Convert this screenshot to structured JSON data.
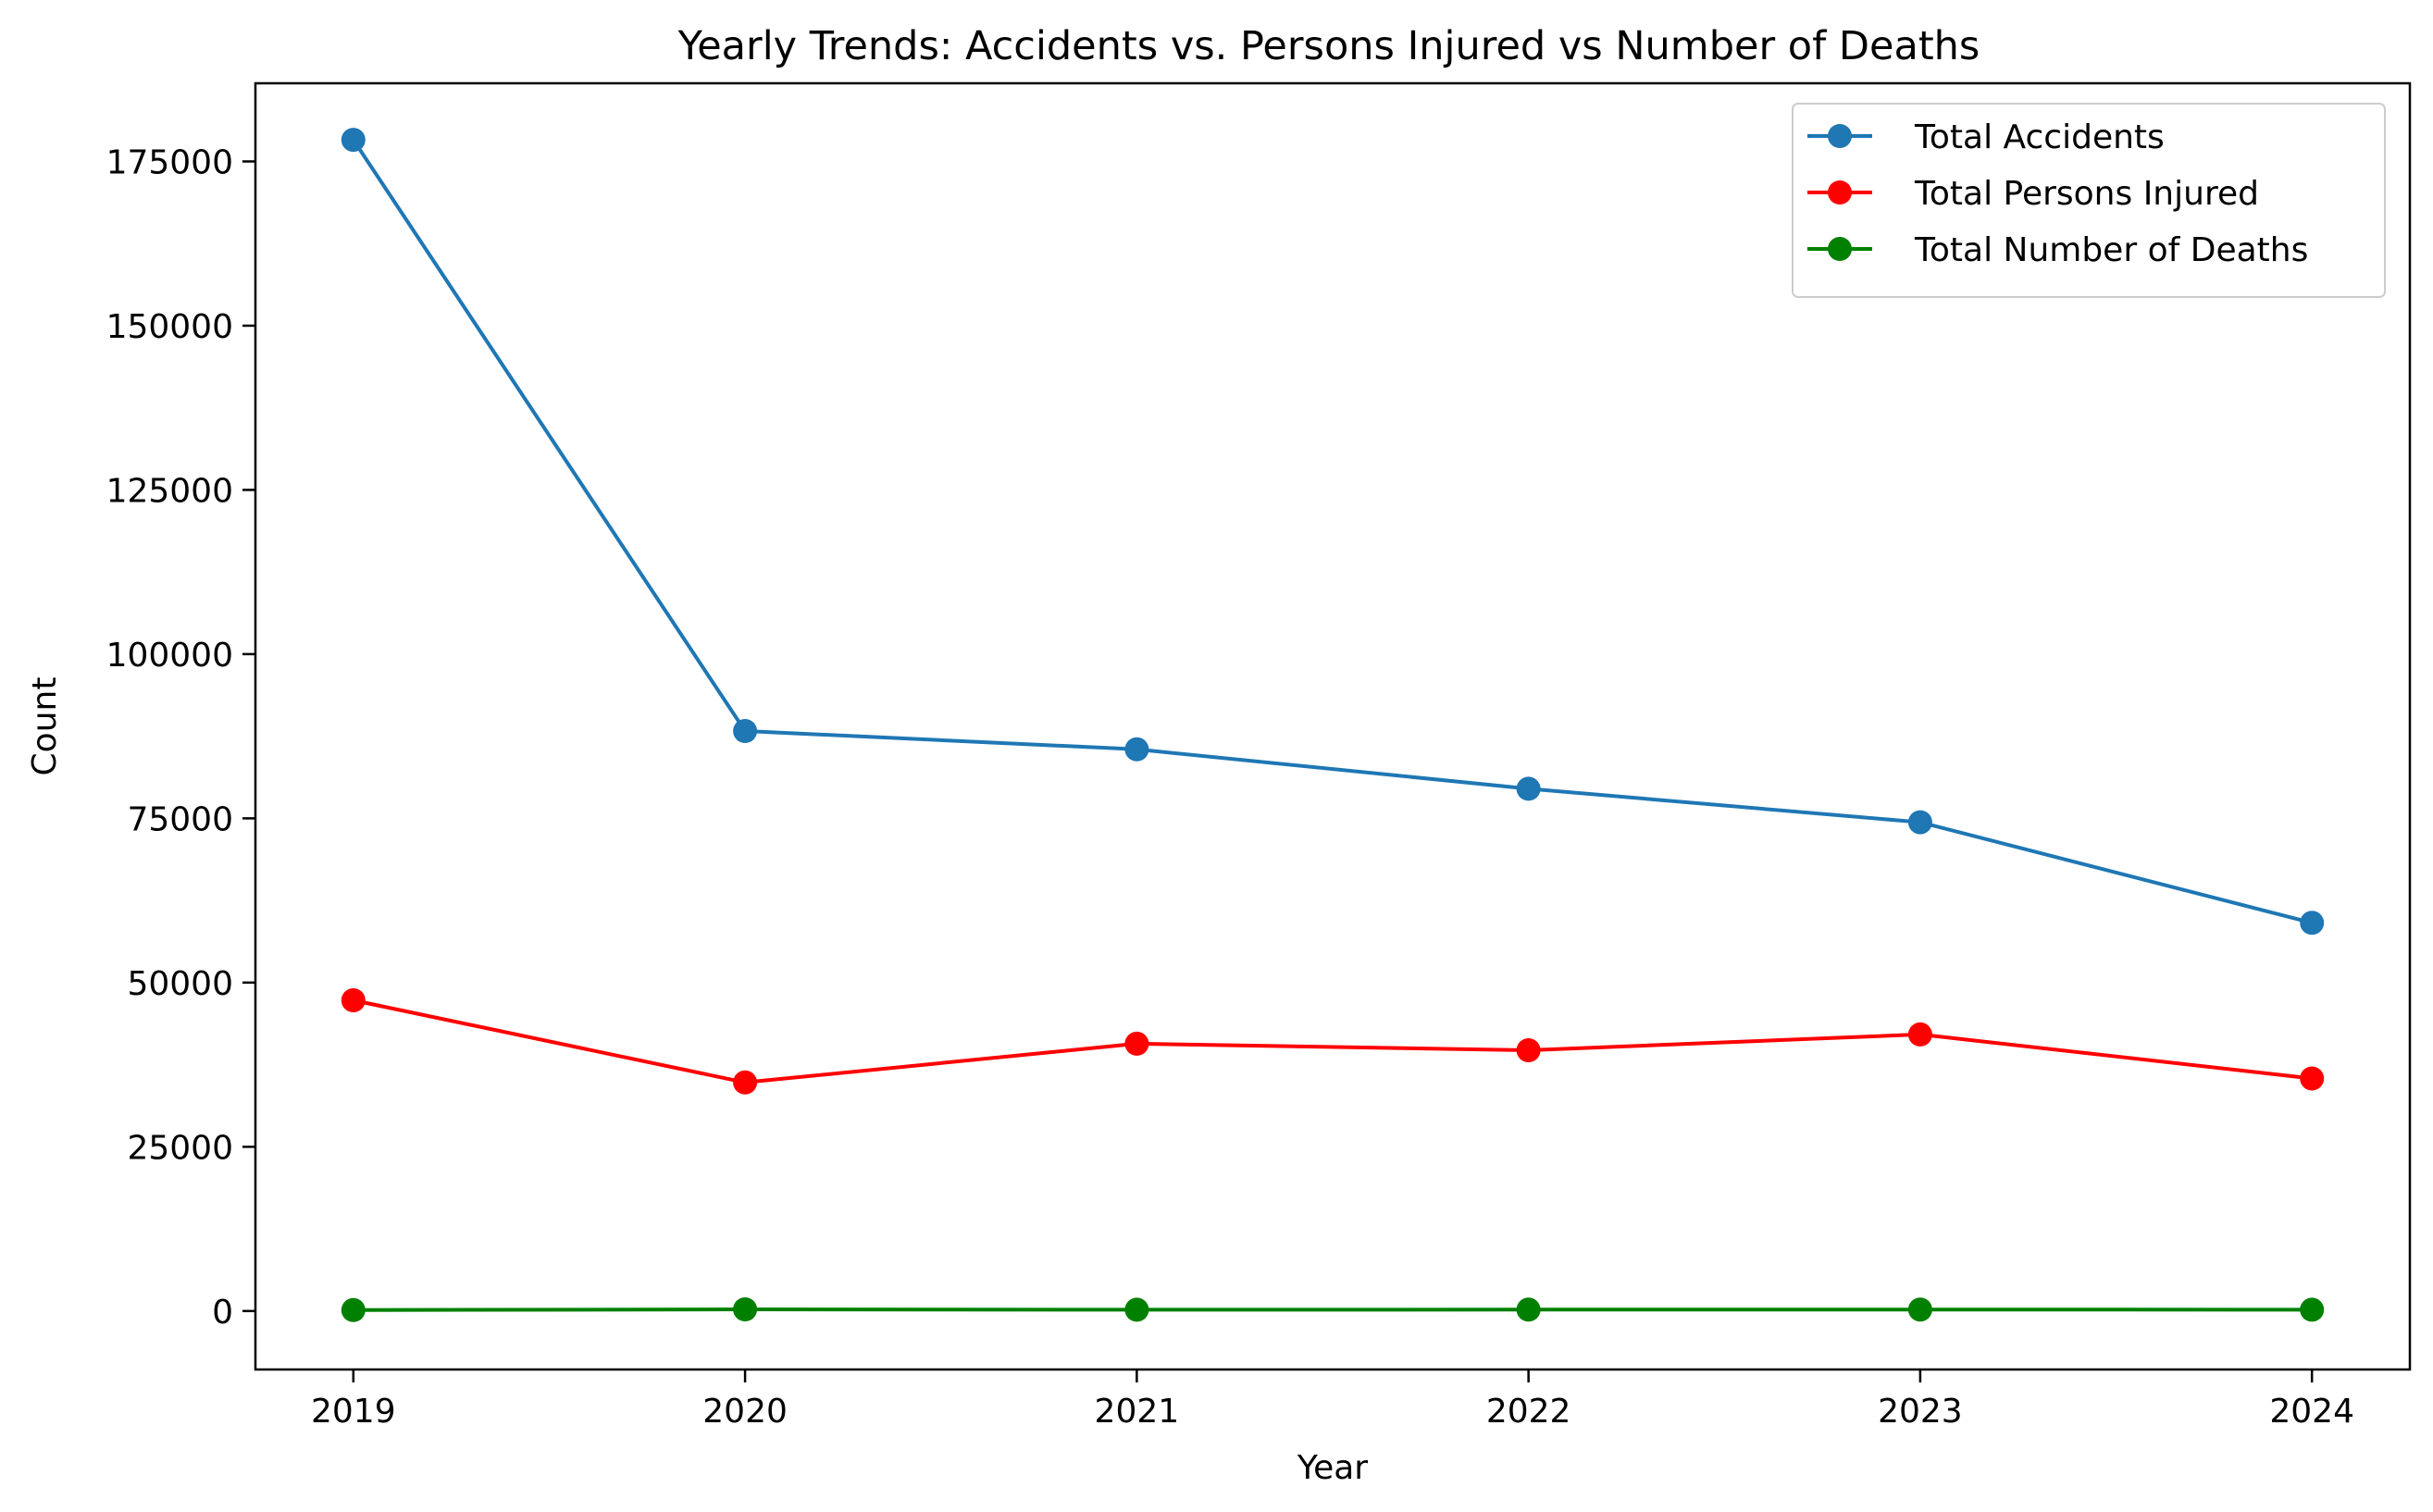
{
  "chart_data": {
    "type": "line",
    "title": "Yearly Trends: Accidents vs. Persons Injured vs Number of Deaths",
    "xlabel": "Year",
    "ylabel": "Count",
    "categories": [
      "2019",
      "2020",
      "2021",
      "2022",
      "2023",
      "2024"
    ],
    "x": [
      2019,
      2020,
      2021,
      2022,
      2023,
      2024
    ],
    "xlim": [
      2018.75,
      2024.25
    ],
    "ylim": [
      -8900,
      186900
    ],
    "yticks": [
      0,
      25000,
      50000,
      75000,
      100000,
      125000,
      150000,
      175000
    ],
    "ytick_labels": [
      "0",
      "25000",
      "50000",
      "75000",
      "100000",
      "125000",
      "150000",
      "175000"
    ],
    "grid": false,
    "legend": "top-right",
    "series": [
      {
        "name": "Total Accidents",
        "color": "#1f77b4",
        "values": [
          178300,
          88300,
          85500,
          79500,
          74400,
          59100
        ]
      },
      {
        "name": "Total Persons Injured",
        "color": "#ff0000",
        "values": [
          47300,
          34800,
          40700,
          39700,
          42100,
          35400
        ]
      },
      {
        "name": "Total Number of Deaths",
        "color": "#008000",
        "values": [
          150,
          250,
          200,
          220,
          230,
          200
        ]
      }
    ]
  }
}
